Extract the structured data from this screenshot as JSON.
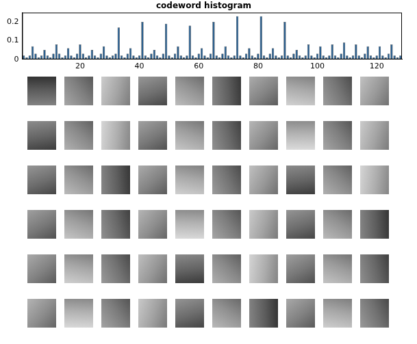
{
  "chart_data": {
    "type": "bar",
    "title": "codeword histogram",
    "x": [
      1,
      2,
      3,
      4,
      5,
      6,
      7,
      8,
      9,
      10,
      11,
      12,
      13,
      14,
      15,
      16,
      17,
      18,
      19,
      20,
      21,
      22,
      23,
      24,
      25,
      26,
      27,
      28,
      29,
      30,
      31,
      32,
      33,
      34,
      35,
      36,
      37,
      38,
      39,
      40,
      41,
      42,
      43,
      44,
      45,
      46,
      47,
      48,
      49,
      50,
      51,
      52,
      53,
      54,
      55,
      56,
      57,
      58,
      59,
      60,
      61,
      62,
      63,
      64,
      65,
      66,
      67,
      68,
      69,
      70,
      71,
      72,
      73,
      74,
      75,
      76,
      77,
      78,
      79,
      80,
      81,
      82,
      83,
      84,
      85,
      86,
      87,
      88,
      89,
      90,
      91,
      92,
      93,
      94,
      95,
      96,
      97,
      98,
      99,
      100,
      101,
      102,
      103,
      104,
      105,
      106,
      107,
      108,
      109,
      110,
      111,
      112,
      113,
      114,
      115,
      116,
      117,
      118,
      119,
      120,
      121,
      122,
      123,
      124,
      125,
      126,
      127,
      128
    ],
    "values": [
      0.02,
      0.01,
      0.02,
      0.07,
      0.03,
      0.01,
      0.02,
      0.05,
      0.02,
      0.01,
      0.03,
      0.08,
      0.03,
      0.01,
      0.02,
      0.06,
      0.02,
      0.01,
      0.03,
      0.08,
      0.03,
      0.01,
      0.02,
      0.05,
      0.02,
      0.01,
      0.03,
      0.07,
      0.02,
      0.01,
      0.02,
      0.03,
      0.17,
      0.02,
      0.01,
      0.03,
      0.06,
      0.02,
      0.01,
      0.02,
      0.2,
      0.02,
      0.01,
      0.03,
      0.05,
      0.02,
      0.01,
      0.03,
      0.19,
      0.02,
      0.01,
      0.03,
      0.07,
      0.02,
      0.01,
      0.02,
      0.18,
      0.02,
      0.01,
      0.03,
      0.06,
      0.02,
      0.01,
      0.03,
      0.2,
      0.02,
      0.01,
      0.03,
      0.07,
      0.02,
      0.01,
      0.02,
      0.23,
      0.02,
      0.01,
      0.03,
      0.06,
      0.02,
      0.01,
      0.03,
      0.23,
      0.02,
      0.01,
      0.03,
      0.06,
      0.02,
      0.01,
      0.02,
      0.2,
      0.02,
      0.01,
      0.03,
      0.05,
      0.02,
      0.01,
      0.02,
      0.08,
      0.02,
      0.01,
      0.03,
      0.07,
      0.02,
      0.01,
      0.02,
      0.08,
      0.02,
      0.01,
      0.03,
      0.09,
      0.02,
      0.01,
      0.02,
      0.08,
      0.02,
      0.01,
      0.03,
      0.07,
      0.02,
      0.01,
      0.02,
      0.07,
      0.02,
      0.01,
      0.03,
      0.08,
      0.02,
      0.01,
      0.02
    ],
    "color": "#2b5f8e",
    "xlim": [
      0.5,
      128.5
    ],
    "xticks": [
      20,
      40,
      60,
      80,
      100,
      120
    ],
    "ylim": [
      0,
      0.25
    ],
    "yticks": [
      0,
      0.1,
      0.2
    ],
    "grid": false
  }
}
